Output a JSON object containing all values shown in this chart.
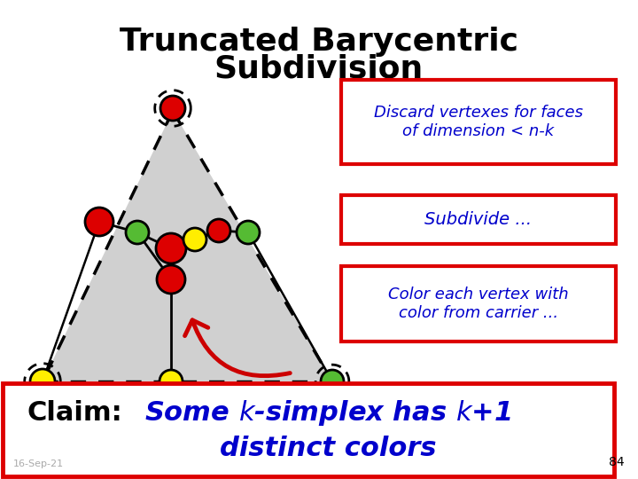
{
  "title_line1": "Truncated Barycentric",
  "title_line2": "Subdivision",
  "title_fontsize": 26,
  "bg_color": "#ffffff",
  "triangle_fill": "#d0d0d0",
  "box_edge_color": "#dd0000",
  "box_text_color": "#0000cc",
  "box1_text": "Discard vertexes for faces\nof dimension < ",
  "box2_text": "Subdivide ...",
  "box3_text": "Color each vertex with\ncolor from carrier ...",
  "arrow_color": "#cc0000",
  "bottom_label": "16-Sep-21",
  "page_num": "84"
}
